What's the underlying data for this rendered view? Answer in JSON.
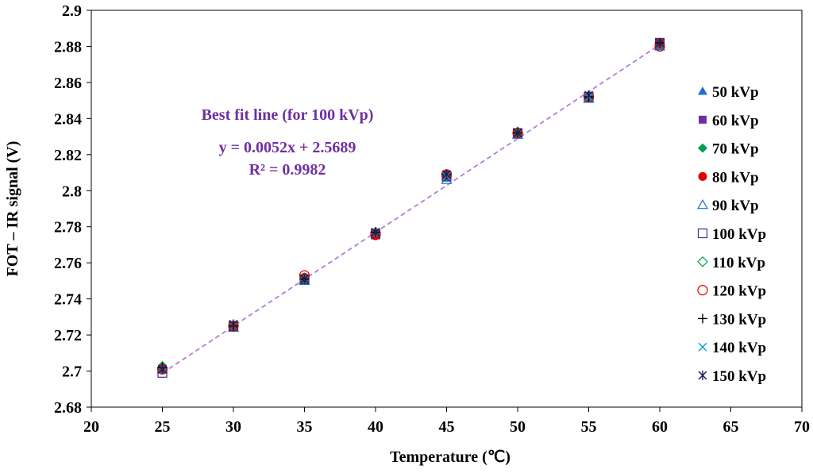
{
  "chart_data": {
    "type": "scatter",
    "title": "",
    "xlabel": "Temperature (℃)",
    "ylabel": "FOT – IR signal (V)",
    "xlim": [
      20,
      70
    ],
    "ylim": [
      2.68,
      2.9
    ],
    "xticks": [
      20,
      25,
      30,
      35,
      40,
      45,
      50,
      55,
      60,
      65,
      70
    ],
    "yticks": [
      2.68,
      2.7,
      2.72,
      2.74,
      2.76,
      2.78,
      2.8,
      2.82,
      2.84,
      2.86,
      2.88,
      2.9
    ],
    "xtick_labels": [
      "20",
      "25",
      "30",
      "35",
      "40",
      "45",
      "50",
      "55",
      "60",
      "65",
      "70"
    ],
    "ytick_labels": [
      "2.68",
      "2.7",
      "2.72",
      "2.74",
      "2.76",
      "2.78",
      "2.8",
      "2.82",
      "2.84",
      "2.86",
      "2.88",
      "2.9"
    ],
    "x": [
      25,
      30,
      35,
      40,
      45,
      50,
      55,
      60
    ],
    "series": [
      {
        "name": "50 kVp",
        "marker": "triangle-filled",
        "color": "#1f6fd0",
        "values": [
          2.701,
          2.724,
          2.75,
          2.775,
          2.807,
          2.832,
          2.851,
          2.88
        ]
      },
      {
        "name": "60 kVp",
        "marker": "square-filled",
        "color": "#7030a0",
        "values": [
          2.701,
          2.725,
          2.751,
          2.776,
          2.808,
          2.832,
          2.852,
          2.881
        ]
      },
      {
        "name": "70 kVp",
        "marker": "diamond-filled",
        "color": "#00a050",
        "values": [
          2.703,
          2.725,
          2.752,
          2.776,
          2.809,
          2.833,
          2.853,
          2.882
        ]
      },
      {
        "name": "80 kVp",
        "marker": "circle-filled",
        "color": "#e00000",
        "values": [
          2.701,
          2.725,
          2.752,
          2.775,
          2.809,
          2.832,
          2.852,
          2.882
        ]
      },
      {
        "name": "90 kVp",
        "marker": "triangle-open",
        "color": "#1f6fd0",
        "values": [
          2.701,
          2.724,
          2.75,
          2.777,
          2.806,
          2.831,
          2.851,
          2.88
        ]
      },
      {
        "name": "100 kVp",
        "marker": "square-open",
        "color": "#4b2a86",
        "values": [
          2.699,
          2.725,
          2.751,
          2.776,
          2.808,
          2.832,
          2.852,
          2.882
        ]
      },
      {
        "name": "110 kVp",
        "marker": "diamond-open",
        "color": "#00a050",
        "values": [
          2.702,
          2.725,
          2.751,
          2.777,
          2.808,
          2.832,
          2.852,
          2.881
        ]
      },
      {
        "name": "120 kVp",
        "marker": "circle-open",
        "color": "#e00000",
        "values": [
          2.701,
          2.725,
          2.753,
          2.776,
          2.809,
          2.832,
          2.852,
          2.88
        ]
      },
      {
        "name": "130 kVp",
        "marker": "plus",
        "color": "#000000",
        "values": [
          2.702,
          2.725,
          2.751,
          2.777,
          2.809,
          2.832,
          2.852,
          2.882
        ]
      },
      {
        "name": "140 kVp",
        "marker": "x",
        "color": "#00a0e0",
        "values": [
          2.701,
          2.726,
          2.751,
          2.777,
          2.808,
          2.832,
          2.852,
          2.882
        ]
      },
      {
        "name": "150 kVp",
        "marker": "asterisk",
        "color": "#1a1a5e",
        "values": [
          2.701,
          2.726,
          2.751,
          2.777,
          2.809,
          2.832,
          2.853,
          2.882
        ]
      }
    ],
    "trendline": {
      "label_line1": "Best fit line (for 100 kVp)",
      "label_line2": "y = 0.0052x + 2.5689",
      "label_line3": "R² = 0.9982",
      "slope": 0.0052,
      "intercept": 2.5689,
      "x_range": [
        25,
        60
      ],
      "color": "#b07fd8"
    },
    "legend_position": "right",
    "grid": false
  }
}
